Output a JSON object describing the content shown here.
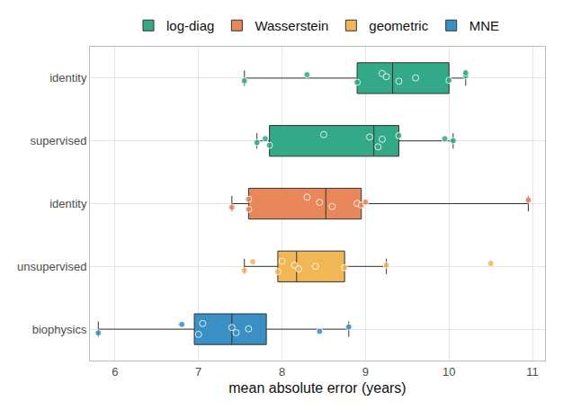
{
  "chart_data": {
    "type": "box",
    "orientation": "horizontal",
    "x_label": "mean absolute error (years)",
    "categories": [
      "identity",
      "supervised",
      "identity",
      "unsupervised",
      "biophysics"
    ],
    "series": [
      {
        "name": "log-diag",
        "color": "#33a987",
        "values": [
          [
            7.55,
            8.3,
            8.9,
            9.2,
            9.25,
            9.4,
            9.6,
            10.0,
            10.2,
            10.2
          ],
          [
            7.7,
            7.8,
            7.85,
            8.5,
            9.05,
            9.15,
            9.2,
            9.4,
            9.95,
            10.05
          ],
          null,
          null,
          null
        ]
      },
      {
        "name": "Wasserstein",
        "color": "#e8875a",
        "values": [
          null,
          null,
          [
            7.4,
            7.6,
            7.6,
            8.3,
            8.45,
            8.6,
            8.9,
            8.95,
            9.0,
            10.95
          ],
          null,
          null
        ]
      },
      {
        "name": "geometric",
        "color": "#f2b755",
        "values": [
          null,
          null,
          null,
          [
            7.55,
            7.65,
            7.95,
            8.0,
            8.15,
            8.2,
            8.4,
            8.75,
            9.25,
            10.5
          ],
          null
        ]
      },
      {
        "name": "MNE",
        "color": "#3a8fc4",
        "values": [
          null,
          null,
          null,
          null,
          [
            5.8,
            6.8,
            7.0,
            7.05,
            7.4,
            7.45,
            7.6,
            8.45,
            8.8
          ]
        ]
      }
    ],
    "xlim": [
      5.7,
      11.15
    ],
    "xticks": [
      6,
      7,
      8,
      9,
      10,
      11
    ],
    "grid": true,
    "legend": "top"
  }
}
